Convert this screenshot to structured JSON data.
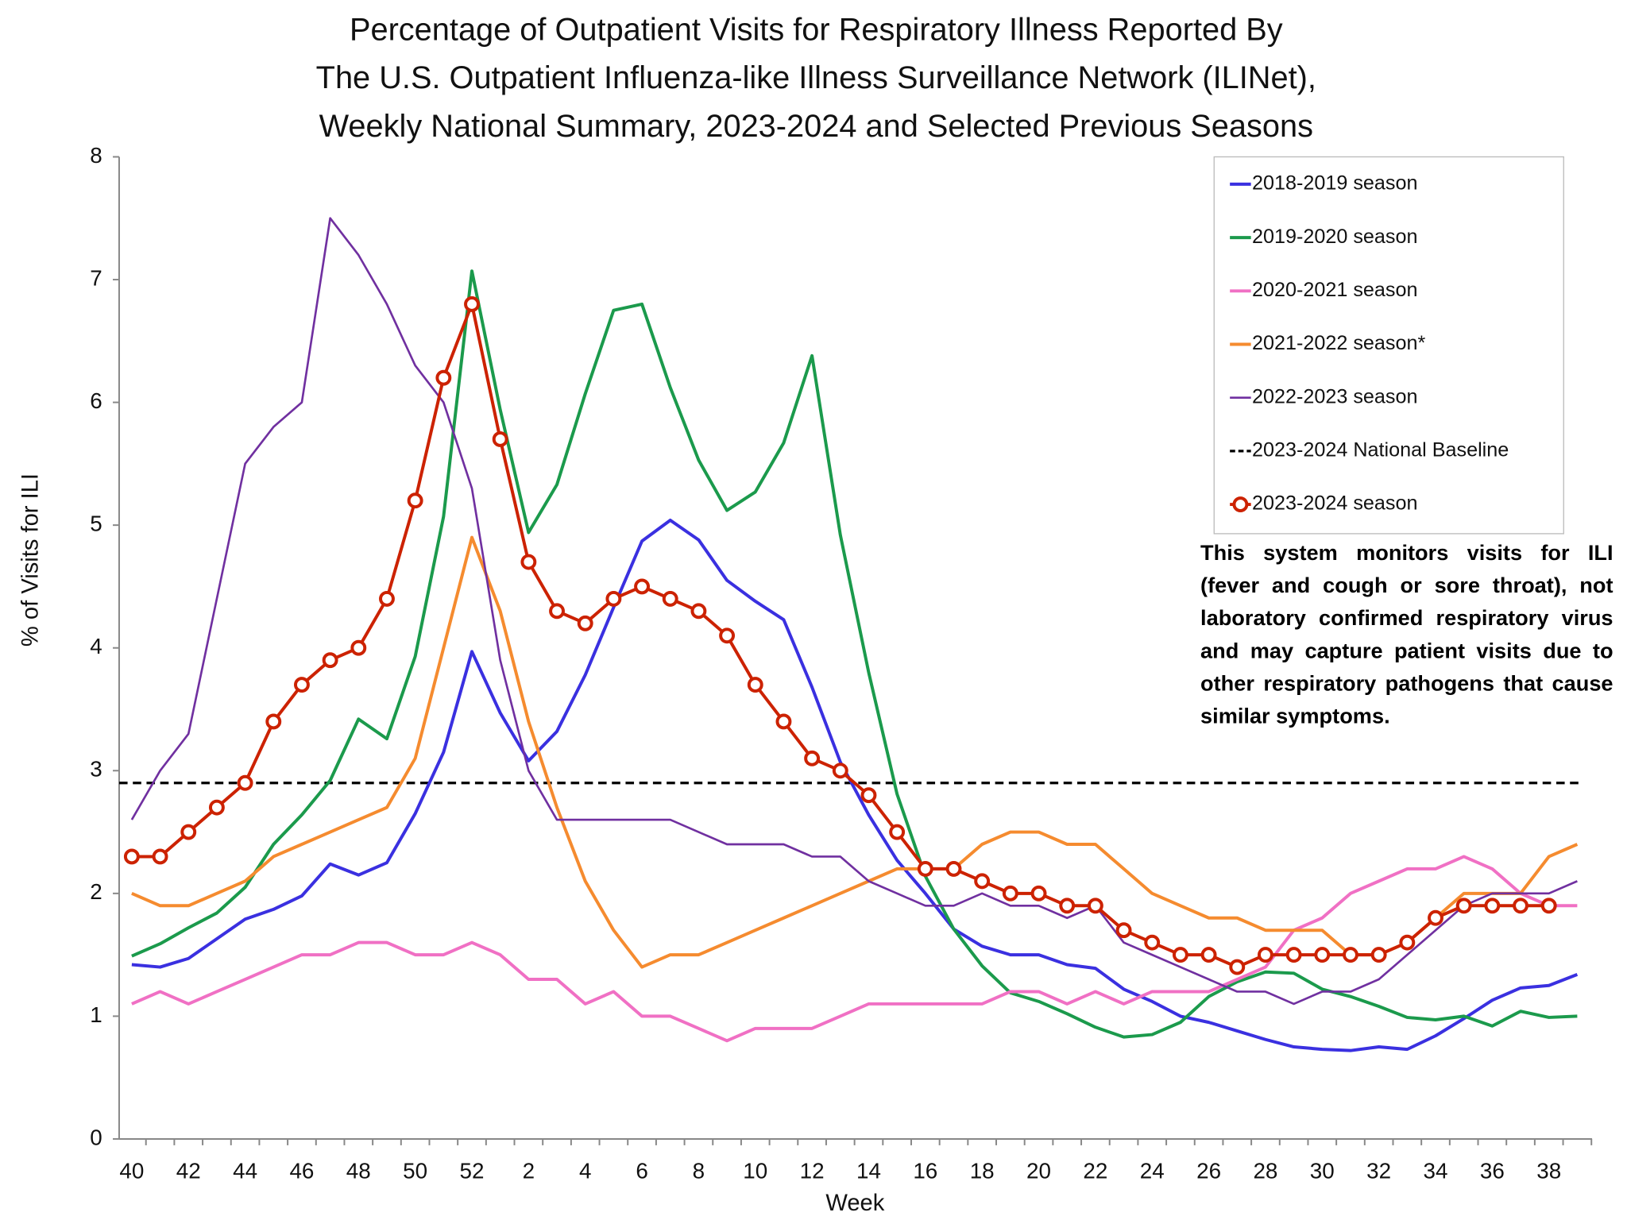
{
  "chart_data": {
    "type": "line",
    "title": [
      "Percentage of Outpatient Visits for Respiratory Illness Reported By",
      "The U.S. Outpatient Influenza-like Illness Surveillance Network (ILINet),",
      "Weekly National Summary, 2023-2024 and Selected Previous Seasons"
    ],
    "x_label": "Week",
    "y_label": "% of Visits for ILI",
    "annotation": "This system monitors visits for ILI (fever and cough or sore throat), not laboratory confirmed respiratory virus and may capture patient visits due to other respiratory pathogens that cause similar symptoms.",
    "categories": [
      "40",
      null,
      "42",
      null,
      "44",
      null,
      "46",
      null,
      "48",
      null,
      "50",
      null,
      "52",
      null,
      "2",
      null,
      "4",
      null,
      "6",
      null,
      "8",
      null,
      "10",
      null,
      "12",
      null,
      "14",
      null,
      "16",
      null,
      "18",
      null,
      "20",
      null,
      "22",
      null,
      "24",
      null,
      "26",
      null,
      "28",
      null,
      "30",
      null,
      "32",
      null,
      "34",
      null,
      "36",
      null,
      "38",
      null
    ],
    "ylim": [
      0,
      8
    ],
    "yticks": [
      0,
      1,
      2,
      3,
      4,
      5,
      6,
      7,
      8
    ],
    "legend": "upper right",
    "series": [
      {
        "name": "2018-2019 season",
        "color": "#3a30e0",
        "width": 3,
        "values": [
          1.42,
          1.4,
          1.47,
          1.63,
          1.79,
          1.87,
          1.98,
          2.24,
          2.15,
          2.25,
          2.65,
          3.15,
          3.97,
          3.47,
          3.08,
          3.32,
          3.78,
          4.33,
          4.87,
          5.04,
          4.88,
          4.55,
          4.38,
          4.23,
          3.68,
          3.07,
          2.64,
          2.27,
          2.0,
          1.71,
          1.57,
          1.5,
          1.5,
          1.42,
          1.39,
          1.22,
          1.12,
          1.0,
          0.95,
          0.88,
          0.81,
          0.75,
          0.73,
          0.72,
          0.75,
          0.73,
          0.84,
          0.98,
          1.13,
          1.23,
          1.25,
          1.34
        ]
      },
      {
        "name": "2019-2020 season",
        "color": "#1b9a4c",
        "width": 3,
        "values": [
          1.49,
          1.59,
          1.72,
          1.84,
          2.05,
          2.4,
          2.64,
          2.92,
          3.42,
          3.26,
          3.93,
          5.07,
          7.07,
          5.94,
          4.94,
          5.33,
          6.07,
          6.75,
          6.8,
          6.12,
          5.53,
          5.12,
          5.27,
          5.67,
          6.38,
          4.92,
          3.8,
          2.81,
          2.14,
          1.71,
          1.41,
          1.19,
          1.12,
          1.02,
          0.91,
          0.83,
          0.85,
          0.95,
          1.16,
          1.28,
          1.36,
          1.35,
          1.22,
          1.16,
          1.08,
          0.99,
          0.97,
          1.0,
          0.92,
          1.04,
          0.99,
          1.0
        ]
      },
      {
        "name": "2020-2021 season",
        "color": "#f070c4",
        "width": 3,
        "values": [
          1.1,
          1.2,
          1.1,
          1.2,
          1.3,
          1.4,
          1.5,
          1.5,
          1.6,
          1.6,
          1.5,
          1.5,
          1.6,
          1.5,
          1.3,
          1.3,
          1.1,
          1.2,
          1.0,
          1.0,
          0.9,
          0.8,
          0.9,
          0.9,
          0.9,
          1.0,
          1.1,
          1.1,
          1.1,
          1.1,
          1.1,
          1.2,
          1.2,
          1.1,
          1.2,
          1.1,
          1.2,
          1.2,
          1.2,
          1.3,
          1.4,
          1.7,
          1.8,
          2.0,
          2.1,
          2.2,
          2.2,
          2.3,
          2.2,
          2.0,
          1.9,
          1.9
        ]
      },
      {
        "name": "2021-2022 season*",
        "color": "#f58b2f",
        "width": 3,
        "values": [
          2.0,
          1.9,
          1.9,
          2.0,
          2.1,
          2.3,
          2.4,
          2.5,
          2.6,
          2.7,
          3.1,
          4.0,
          4.9,
          4.3,
          3.4,
          2.7,
          2.1,
          1.7,
          1.4,
          1.5,
          1.5,
          1.6,
          1.7,
          1.8,
          1.9,
          2.0,
          2.1,
          2.2,
          2.2,
          2.2,
          2.4,
          2.5,
          2.5,
          2.4,
          2.4,
          2.2,
          2.0,
          1.9,
          1.8,
          1.8,
          1.7,
          1.7,
          1.7,
          1.5,
          1.5,
          1.6,
          1.8,
          2.0,
          2.0,
          2.0,
          2.3,
          2.4
        ]
      },
      {
        "name": "2022-2023 season",
        "color": "#7030a0",
        "width": 2,
        "values": [
          2.6,
          3.0,
          3.3,
          4.4,
          5.5,
          5.8,
          6.0,
          7.5,
          7.2,
          6.8,
          6.3,
          6.0,
          5.3,
          3.9,
          3.0,
          2.6,
          2.6,
          2.6,
          2.6,
          2.6,
          2.5,
          2.4,
          2.4,
          2.4,
          2.3,
          2.3,
          2.1,
          2.0,
          1.9,
          1.9,
          2.0,
          1.9,
          1.9,
          1.8,
          1.9,
          1.6,
          1.5,
          1.4,
          1.3,
          1.2,
          1.2,
          1.1,
          1.2,
          1.2,
          1.3,
          1.5,
          1.7,
          1.9,
          2.0,
          2.0,
          2.0,
          2.1
        ]
      },
      {
        "name": "2023-2024 season",
        "color": "#cc2200",
        "width": 3,
        "marker": "circle",
        "values": [
          2.3,
          2.3,
          2.5,
          2.7,
          2.9,
          3.4,
          3.7,
          3.9,
          4.0,
          4.4,
          5.2,
          6.2,
          6.8,
          5.7,
          4.7,
          4.3,
          4.2,
          4.4,
          4.5,
          4.4,
          4.3,
          4.1,
          3.7,
          3.4,
          3.1,
          3.0,
          2.8,
          2.5,
          2.2,
          2.2,
          2.1,
          2.0,
          2.0,
          1.9,
          1.9,
          1.7,
          1.6,
          1.5,
          1.5,
          1.4,
          1.5,
          1.5,
          1.5,
          1.5,
          1.5,
          1.6,
          1.8,
          1.9,
          1.9,
          1.9,
          1.9,
          null
        ]
      }
    ],
    "hlines": [
      {
        "name": "2023-2024 National Baseline",
        "value": 2.9,
        "color": "#000000",
        "linestyle": "dashed"
      }
    ]
  }
}
